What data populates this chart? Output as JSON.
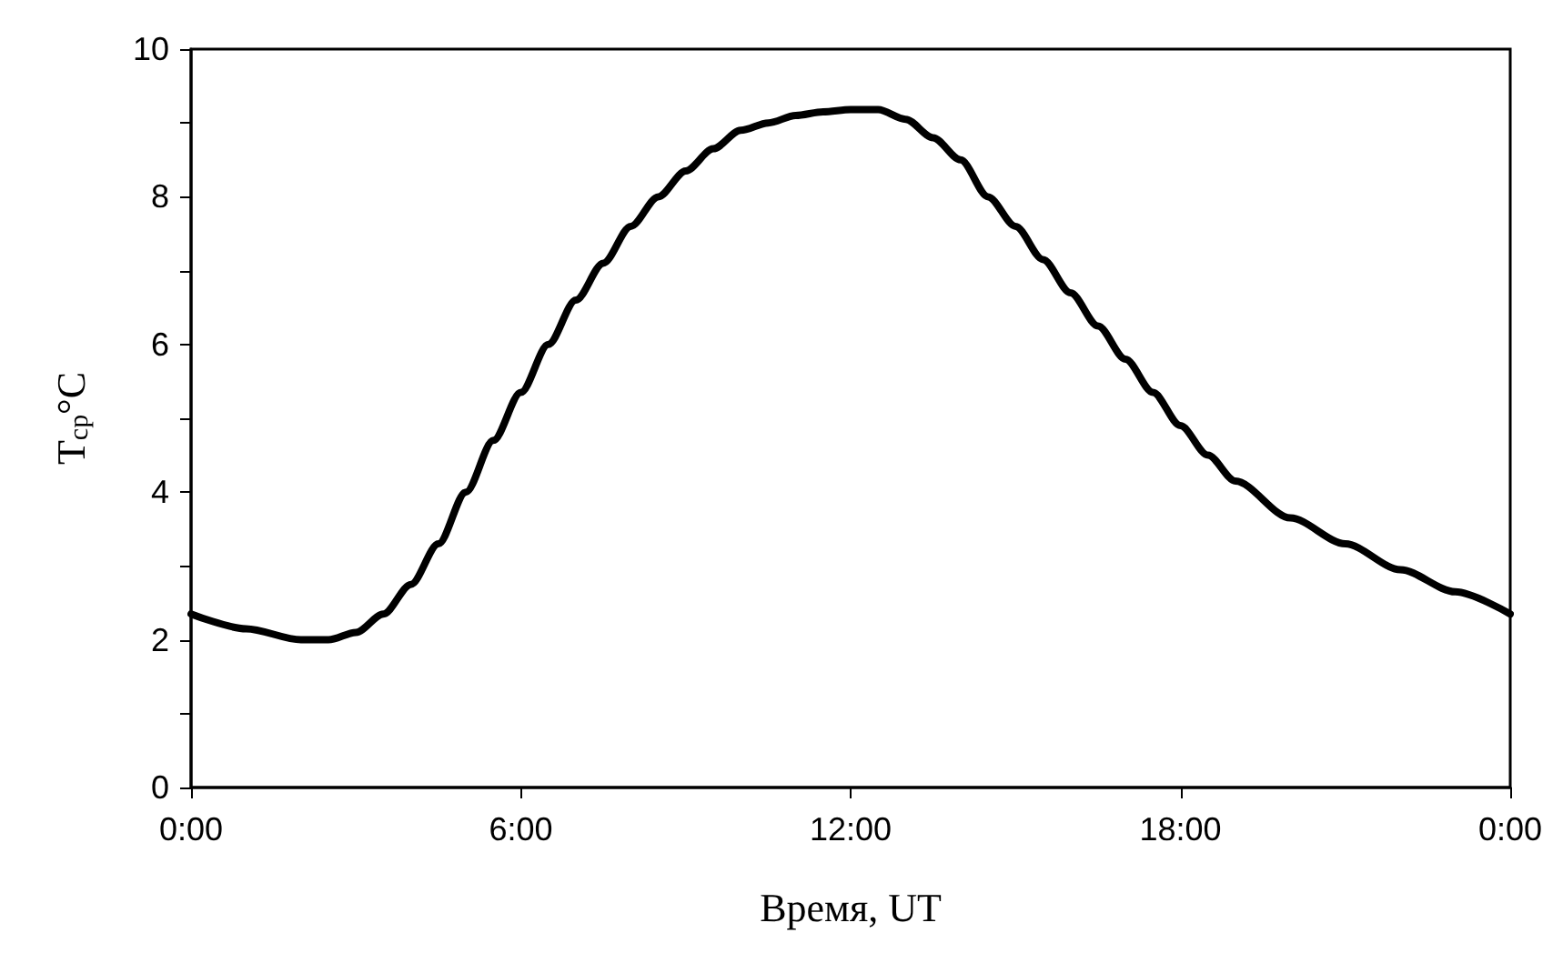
{
  "chart_data": {
    "type": "line",
    "xlabel": "Время, UT",
    "ylabel": "T$_{ср}$°C",
    "x": [
      0,
      1,
      2,
      2.5,
      3,
      3.5,
      4,
      4.5,
      5,
      5.5,
      6,
      6.5,
      7,
      7.5,
      8,
      8.5,
      9,
      9.5,
      10,
      10.5,
      11,
      11.5,
      12,
      12.5,
      13,
      13.5,
      14,
      14.5,
      15,
      15.5,
      16,
      16.5,
      17,
      17.5,
      18,
      18.5,
      19,
      20,
      21,
      22,
      23,
      24
    ],
    "series": [
      {
        "color": "#000000",
        "values": [
          2.35,
          2.15,
          2.0,
          2.0,
          2.1,
          2.35,
          2.75,
          3.3,
          4.0,
          4.7,
          5.35,
          6.0,
          6.6,
          7.1,
          7.6,
          8.0,
          8.35,
          8.65,
          8.9,
          9.0,
          9.1,
          9.15,
          9.18,
          9.18,
          9.05,
          8.8,
          8.5,
          8.0,
          7.6,
          7.15,
          6.7,
          6.25,
          5.8,
          5.35,
          4.9,
          4.5,
          4.15,
          3.65,
          3.3,
          2.95,
          2.65,
          2.35
        ]
      }
    ],
    "xlim": [
      0,
      24
    ],
    "xticks": [
      {
        "value": 0,
        "label": "0:00"
      },
      {
        "value": 6,
        "label": "6:00"
      },
      {
        "value": 12,
        "label": "12:00"
      },
      {
        "value": 18,
        "label": "18:00"
      },
      {
        "value": 24,
        "label": "0:00"
      }
    ],
    "ylim": [
      0,
      10
    ],
    "yticks": [
      0,
      {
        "value": 1,
        "label": null
      },
      2,
      {
        "value": 3,
        "label": null
      },
      4,
      {
        "value": 5,
        "label": null
      },
      6,
      {
        "value": 7,
        "label": null
      },
      8,
      {
        "value": 9,
        "label": null
      },
      10
    ],
    "grid": false,
    "marker": "none",
    "line_style": "solid"
  }
}
